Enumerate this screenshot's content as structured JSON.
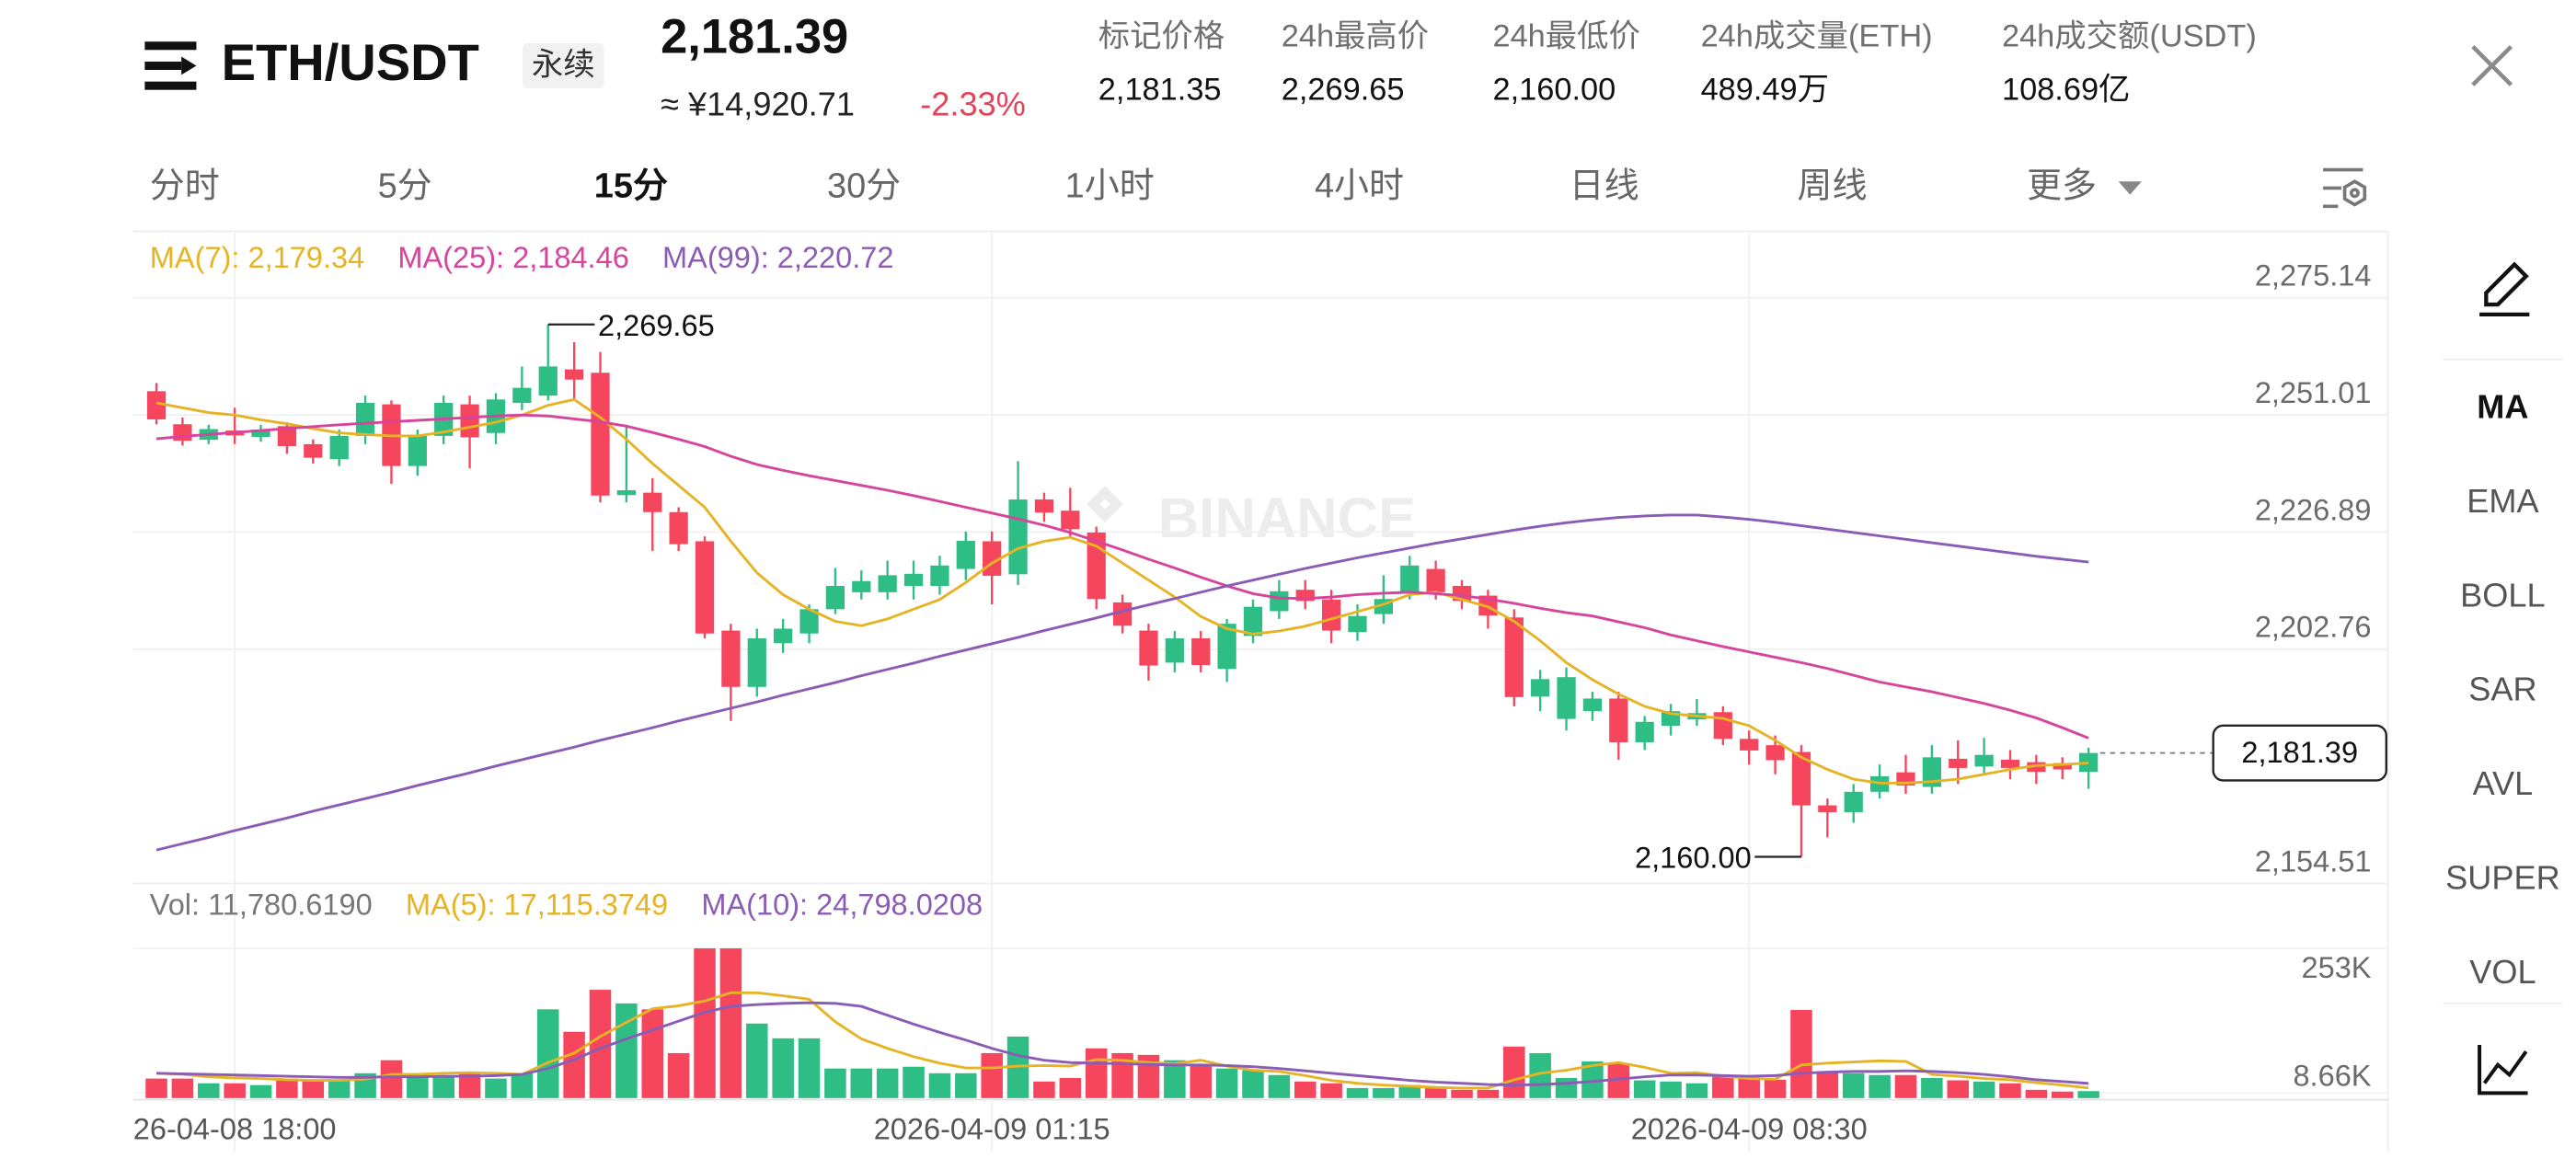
{
  "header": {
    "symbol": "ETH/USDT",
    "contract": "永续",
    "last_price": "2,181.39",
    "cny_price": "≈ ¥14,920.71",
    "change": "-2.33%",
    "stats": [
      {
        "label": "标记价格",
        "value": "2,181.35"
      },
      {
        "label": "24h最高价",
        "value": "2,269.65"
      },
      {
        "label": "24h最低价",
        "value": "2,160.00"
      },
      {
        "label": "24h成交量(ETH)",
        "value": "489.49万"
      },
      {
        "label": "24h成交额(USDT)",
        "value": "108.69亿"
      }
    ]
  },
  "tabs": [
    "分时",
    "5分",
    "15分",
    "30分",
    "1小时",
    "4小时",
    "日线",
    "周线",
    "更多"
  ],
  "active_tab": "15分",
  "indicators": [
    "MA",
    "EMA",
    "BOLL",
    "SAR",
    "AVL",
    "SUPER",
    "VOL"
  ],
  "watermark": "BINANCE",
  "chart_data": [
    {
      "type": "candlestick",
      "x": [
        "2026-04-08 17:15",
        "2026-04-08 17:30",
        "2026-04-08 17:45",
        "2026-04-08 18:00",
        "2026-04-08 18:15",
        "2026-04-08 18:30",
        "2026-04-08 18:45",
        "2026-04-08 19:00",
        "2026-04-08 19:15",
        "2026-04-08 19:30",
        "2026-04-08 19:45",
        "2026-04-08 20:00",
        "2026-04-08 20:15",
        "2026-04-08 20:30",
        "2026-04-08 20:45",
        "2026-04-08 21:00",
        "2026-04-08 21:15",
        "2026-04-08 21:30",
        "2026-04-08 21:45",
        "2026-04-08 22:00",
        "2026-04-08 22:15",
        "2026-04-08 22:30",
        "2026-04-08 22:45",
        "2026-04-08 23:00",
        "2026-04-08 23:15",
        "2026-04-08 23:30",
        "2026-04-08 23:45",
        "2026-04-09 00:00",
        "2026-04-09 00:15",
        "2026-04-09 00:30",
        "2026-04-09 00:45",
        "2026-04-09 01:00",
        "2026-04-09 01:15",
        "2026-04-09 01:30",
        "2026-04-09 01:45",
        "2026-04-09 02:00",
        "2026-04-09 02:15",
        "2026-04-09 02:30",
        "2026-04-09 02:45",
        "2026-04-09 03:00",
        "2026-04-09 03:15",
        "2026-04-09 03:30",
        "2026-04-09 03:45",
        "2026-04-09 04:00",
        "2026-04-09 04:15",
        "2026-04-09 04:30",
        "2026-04-09 04:45",
        "2026-04-09 05:00",
        "2026-04-09 05:15",
        "2026-04-09 05:30",
        "2026-04-09 05:45",
        "2026-04-09 06:00",
        "2026-04-09 06:15",
        "2026-04-09 06:30",
        "2026-04-09 06:45",
        "2026-04-09 07:00",
        "2026-04-09 07:15",
        "2026-04-09 07:30",
        "2026-04-09 07:45",
        "2026-04-09 08:00",
        "2026-04-09 08:15",
        "2026-04-09 08:30",
        "2026-04-09 08:45",
        "2026-04-09 09:00",
        "2026-04-09 09:15",
        "2026-04-09 09:30",
        "2026-04-09 09:45",
        "2026-04-09 10:00",
        "2026-04-09 10:15",
        "2026-04-09 10:30",
        "2026-04-09 10:45",
        "2026-04-09 11:00",
        "2026-04-09 11:15",
        "2026-04-09 11:30",
        "2026-04-09 11:45"
      ],
      "open": [
        2255.9,
        2249.1,
        2245.9,
        2247.8,
        2246.5,
        2248.7,
        2245,
        2241.9,
        2246.7,
        2253.2,
        2240.5,
        2246.7,
        2253.2,
        2247.3,
        2253.5,
        2255,
        2260.4,
        2259.7,
        2234.5,
        2235,
        2231,
        2225,
        2206.6,
        2195,
        2204,
        2206,
        2211,
        2214.5,
        2214.5,
        2215.8,
        2215.8,
        2219.3,
        2225,
        2218.2,
        2233.6,
        2231.3,
        2226.8,
        2212.4,
        2206.6,
        2200,
        2205,
        2198.7,
        2205.5,
        2210.6,
        2215,
        2213,
        2206.3,
        2210,
        2214.5,
        2219.3,
        2215.8,
        2213.8,
        2209.3,
        2193,
        2188.4,
        2190,
        2192.6,
        2183.6,
        2187,
        2188.3,
        2189.8,
        2184.3,
        2183,
        2181.6,
        2170.6,
        2169.2,
        2173.4,
        2177.4,
        2174.4,
        2180.2,
        2178.6,
        2180,
        2179.5,
        2179.3,
        2177.5
      ],
      "high": [
        2257.6,
        2250.5,
        2249,
        2252.5,
        2249,
        2249.5,
        2246,
        2248,
        2255,
        2254,
        2248,
        2255,
        2255,
        2255.5,
        2261,
        2269.65,
        2266,
        2264,
        2249,
        2238,
        2232,
        2226,
        2208,
        2207,
        2209,
        2212,
        2219.5,
        2219,
        2221,
        2221,
        2222,
        2227,
        2227,
        2241.5,
        2235,
        2236,
        2228,
        2214,
        2208,
        2206.5,
        2206.5,
        2209,
        2213,
        2217,
        2217,
        2215,
        2212,
        2218,
        2222,
        2221,
        2217,
        2215,
        2211,
        2198.5,
        2199,
        2194,
        2194,
        2189,
        2191.5,
        2192.5,
        2191,
        2186,
        2185,
        2183,
        2172,
        2175,
        2179,
        2181,
        2183,
        2184,
        2184.5,
        2182,
        2181,
        2180.5,
        2182.5
      ],
      "low": [
        2249.1,
        2244.7,
        2245,
        2245,
        2245.5,
        2243,
        2241,
        2240.5,
        2245,
        2236.8,
        2238.5,
        2245,
        2240,
        2245,
        2252,
        2254,
        2254,
        2233,
        2233,
        2223,
        2223,
        2205,
        2188,
        2193,
        2202,
        2204,
        2210,
        2213,
        2213,
        2213,
        2214,
        2217,
        2212,
        2216,
        2229,
        2226,
        2211,
        2206,
        2196.3,
        2198,
        2198,
        2196,
        2204,
        2209,
        2211,
        2204,
        2204.5,
        2208,
        2213,
        2213,
        2211,
        2207,
        2191,
        2190,
        2186,
        2188,
        2180,
        2182,
        2185,
        2187,
        2183,
        2179,
        2177,
        2160,
        2164,
        2167,
        2172,
        2173,
        2173,
        2175,
        2177,
        2176,
        2175,
        2176,
        2174
      ],
      "close": [
        2250.1,
        2245.7,
        2248.1,
        2246.8,
        2248,
        2244.6,
        2242.2,
        2246.7,
        2253.5,
        2240.5,
        2246.7,
        2253.5,
        2246.4,
        2254.2,
        2256.6,
        2261,
        2258.3,
        2234.4,
        2235.5,
        2231,
        2224.4,
        2206,
        2195,
        2205,
        2207,
        2211,
        2215.8,
        2216.8,
        2218,
        2218.3,
        2220,
        2225.1,
        2217.9,
        2233.6,
        2230.9,
        2227.5,
        2213.1,
        2207.6,
        2199.4,
        2205,
        2199.5,
        2208,
        2211.5,
        2214.7,
        2212.7,
        2206.6,
        2209.6,
        2213.1,
        2220,
        2214.5,
        2212.7,
        2209.7,
        2192.9,
        2196.6,
        2197,
        2192.6,
        2183.6,
        2187.8,
        2190,
        2189.6,
        2184.3,
        2181.9,
        2179.9,
        2170.6,
        2169.2,
        2173.4,
        2176.6,
        2174.7,
        2180.5,
        2178.3,
        2181,
        2178.3,
        2177.5,
        2178,
        2181.39
      ],
      "up_color": "#2ebd85",
      "down_color": "#f6465d",
      "series": [
        {
          "name": "MA(7)",
          "legend": "MA(7): 2,179.34",
          "color": "#e6b325",
          "values": [
            2253.5,
            2252.5,
            2251.5,
            2251,
            2250,
            2249.2,
            2248.2,
            2247.3,
            2247,
            2246.7,
            2246.7,
            2247.5,
            2248.5,
            2249.5,
            2251,
            2253,
            2254.2,
            2250.5,
            2246,
            2241,
            2236.5,
            2232,
            2225,
            2218.5,
            2214,
            2211,
            2208.5,
            2207.6,
            2209,
            2211,
            2213,
            2216.5,
            2220.5,
            2223.5,
            2225,
            2225.8,
            2224,
            2220.5,
            2217,
            2213.5,
            2209.5,
            2207,
            2205.9,
            2206.5,
            2207.5,
            2209,
            2210.5,
            2212,
            2214,
            2214.5,
            2213,
            2211.5,
            2208.5,
            2204.5,
            2200,
            2196.5,
            2193.5,
            2191,
            2189.5,
            2189,
            2188.5,
            2187,
            2184,
            2180.5,
            2178,
            2176,
            2175.2,
            2175.2,
            2175.5,
            2176,
            2177,
            2178,
            2178.8,
            2179,
            2179.34
          ]
        },
        {
          "name": "MA(25)",
          "legend": "MA(25): 2,184.46",
          "color": "#d6449b",
          "values": [
            2246.1,
            2246.6,
            2247,
            2247.4,
            2247.8,
            2248.2,
            2248.6,
            2249,
            2249.3,
            2249.6,
            2249.9,
            2250.2,
            2250.5,
            2250.8,
            2251,
            2250.8,
            2250.2,
            2249.6,
            2248.7,
            2247.4,
            2246,
            2244.5,
            2242.5,
            2240.8,
            2239.6,
            2238.5,
            2237.5,
            2236.5,
            2235.5,
            2234.4,
            2233.2,
            2232,
            2230.8,
            2229.6,
            2228.3,
            2226.8,
            2225,
            2223.2,
            2221.3,
            2219.5,
            2217.6,
            2215.8,
            2214.2,
            2213.3,
            2213.2,
            2213.5,
            2214,
            2214.3,
            2214.5,
            2214.2,
            2213.8,
            2213.1,
            2212.2,
            2211.2,
            2210.3,
            2209.6,
            2208.4,
            2207.2,
            2205.7,
            2204.5,
            2203.3,
            2202.2,
            2201.1,
            2200,
            2198.8,
            2197.4,
            2196,
            2195,
            2194,
            2192.8,
            2191.6,
            2190.2,
            2188.6,
            2186.6,
            2184.46
          ]
        },
        {
          "name": "MA(99)",
          "legend": "MA(99): 2,220.72",
          "color": "#8a5cb5",
          "values": [
            2161.4,
            2162.7,
            2164,
            2165.4,
            2166.7,
            2168,
            2169.4,
            2170.7,
            2172,
            2173.3,
            2174.7,
            2176,
            2177.3,
            2178.7,
            2180,
            2181.3,
            2182.6,
            2184,
            2185.3,
            2186.6,
            2188,
            2189.3,
            2190.6,
            2191.9,
            2193.3,
            2194.6,
            2195.9,
            2197.3,
            2198.6,
            2199.9,
            2201.3,
            2202.6,
            2203.9,
            2205.2,
            2206.6,
            2207.9,
            2209.2,
            2210.6,
            2211.9,
            2213.2,
            2214.5,
            2215.8,
            2217,
            2218.2,
            2219.4,
            2220.5,
            2221.6,
            2222.6,
            2223.6,
            2224.6,
            2225.5,
            2226.4,
            2227.3,
            2228.1,
            2228.8,
            2229.4,
            2229.9,
            2230.2,
            2230.4,
            2230.4,
            2230,
            2229.5,
            2228.9,
            2228.2,
            2227.5,
            2226.8,
            2226.1,
            2225.4,
            2224.7,
            2224,
            2223.3,
            2222.6,
            2221.9,
            2221.3,
            2220.72
          ]
        }
      ],
      "ylim": [
        2154.51,
        2288.5
      ],
      "yticks": [
        {
          "value": 2154.51,
          "label": "2,154.51"
        },
        {
          "value": 2202.76,
          "label": "2,202.76"
        },
        {
          "value": 2226.89,
          "label": "2,226.89"
        },
        {
          "value": 2251.01,
          "label": "2,251.01"
        },
        {
          "value": 2275.14,
          "label": "2,275.14"
        }
      ],
      "grid": true,
      "annotations": [
        {
          "label": "2,269.65",
          "value": 2269.65,
          "x": "2026-04-08 21:00"
        },
        {
          "label": "2,160.00",
          "value": 2160,
          "x": "2026-04-09 09:00"
        }
      ],
      "last_price": {
        "label": "2,181.39",
        "value": 2181.39
      }
    },
    {
      "type": "bar",
      "legend": "Vol: 11,780.6190",
      "values": [
        33000,
        33000,
        25000,
        25000,
        22000,
        33000,
        30000,
        30000,
        42000,
        64000,
        36000,
        36000,
        42000,
        33000,
        42000,
        150000,
        112000,
        183000,
        160000,
        150000,
        76000,
        253000,
        253000,
        126000,
        101000,
        101000,
        50000,
        50000,
        50000,
        53000,
        42000,
        42000,
        76000,
        104000,
        28000,
        34000,
        84000,
        76000,
        73000,
        64000,
        56000,
        50000,
        47000,
        39000,
        28000,
        25000,
        17000,
        17000,
        22000,
        17000,
        14000,
        14000,
        87000,
        76000,
        34000,
        62000,
        59000,
        30000,
        28000,
        25000,
        36000,
        36000,
        31000,
        149000,
        45000,
        42000,
        39000,
        39000,
        34000,
        30000,
        28000,
        25000,
        14000,
        11000,
        11780.619
      ],
      "series": [
        {
          "name": "MA(5)",
          "legend": "MA(5): 17,115.3749",
          "color": "#e6b325",
          "values": [
            42000,
            40000,
            36000,
            34000,
            33000,
            31000,
            30000,
            30000,
            32000,
            40000,
            40000,
            42000,
            43000,
            42000,
            40000,
            60000,
            76000,
            104000,
            128000,
            151000,
            156000,
            164000,
            178000,
            178000,
            173000,
            167000,
            129000,
            100000,
            84000,
            70000,
            59000,
            51000,
            51000,
            54000,
            55000,
            54000,
            65000,
            64000,
            60000,
            58000,
            64000,
            54000,
            47000,
            45000,
            38000,
            30000,
            25000,
            22000,
            20000,
            18000,
            17000,
            17000,
            31000,
            42000,
            47000,
            55000,
            60000,
            52000,
            42000,
            43000,
            37000,
            33000,
            32000,
            56000,
            59000,
            61000,
            63000,
            62000,
            40000,
            37000,
            33000,
            31000,
            26000,
            22000,
            17115.3749
          ]
        },
        {
          "name": "MA(10)",
          "legend": "MA(10): 24,798.0208",
          "color": "#8a5cb5",
          "values": [
            42000,
            41000,
            40000,
            39000,
            38000,
            37000,
            36000,
            35000,
            35000,
            36000,
            36000,
            37000,
            37000,
            38000,
            40000,
            50000,
            65000,
            84000,
            100000,
            115000,
            130000,
            145000,
            155000,
            158000,
            160000,
            161000,
            160000,
            155000,
            140000,
            125000,
            111000,
            98000,
            84000,
            72000,
            64000,
            60000,
            59000,
            58000,
            57000,
            56000,
            56000,
            55000,
            53000,
            50000,
            46000,
            42000,
            38000,
            34000,
            30000,
            27000,
            25000,
            23000,
            22000,
            23000,
            25000,
            28000,
            32000,
            36000,
            39000,
            39000,
            38000,
            37000,
            38000,
            42000,
            44000,
            45000,
            45000,
            46000,
            45000,
            43000,
            40000,
            36000,
            31000,
            28000,
            24798.0208
          ]
        }
      ],
      "ylim": [
        0,
        253000
      ],
      "yticks": [
        {
          "value": 253000,
          "label": "253K"
        },
        {
          "value": 8660,
          "label": "8.66K"
        }
      ],
      "xticks": [
        {
          "value": "2026-04-08 18:00",
          "label": "26-04-08 18:00"
        },
        "2026-04-09 01:15",
        "2026-04-09 08:30"
      ]
    }
  ]
}
